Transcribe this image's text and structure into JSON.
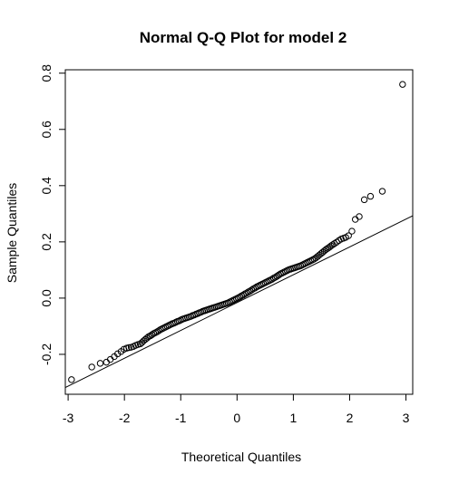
{
  "chart_data": {
    "type": "scatter",
    "title": "Normal Q-Q Plot for model 2",
    "xlabel": "Theoretical Quantiles",
    "ylabel": "Sample Quantiles",
    "xlim": [
      -3.05,
      3.12
    ],
    "ylim": [
      -0.342,
      0.812
    ],
    "xticks": [
      -3,
      -2,
      -1,
      0,
      1,
      2,
      3
    ],
    "xtick_labels": [
      "-3",
      "-2",
      "-1",
      "0",
      "1",
      "2",
      "3"
    ],
    "yticks": [
      -0.2,
      0.0,
      0.2,
      0.4,
      0.6,
      0.8
    ],
    "ytick_labels": [
      "-0.2",
      "0.0",
      "0.2",
      "0.4",
      "0.6",
      "0.8"
    ],
    "grid": false,
    "reference_line": {
      "slope": 0.099,
      "intercept": -0.016
    },
    "points_x": [
      -2.94,
      -2.58,
      -2.43,
      -2.32,
      -2.25,
      -2.18,
      -2.12,
      -2.06,
      -2.01,
      -1.96,
      -1.92,
      -1.88,
      -1.84,
      -1.8,
      -1.76,
      -1.72,
      -1.69,
      -1.66,
      -1.63,
      -1.6,
      -1.57,
      -1.54,
      -1.51,
      -1.48,
      -1.45,
      -1.42,
      -1.39,
      -1.36,
      -1.33,
      -1.3,
      -1.27,
      -1.24,
      -1.21,
      -1.18,
      -1.15,
      -1.12,
      -1.09,
      -1.06,
      -1.03,
      -1.0,
      -0.97,
      -0.94,
      -0.91,
      -0.88,
      -0.85,
      -0.82,
      -0.79,
      -0.76,
      -0.73,
      -0.7,
      -0.67,
      -0.64,
      -0.61,
      -0.58,
      -0.55,
      -0.52,
      -0.49,
      -0.46,
      -0.43,
      -0.4,
      -0.37,
      -0.34,
      -0.31,
      -0.28,
      -0.25,
      -0.22,
      -0.19,
      -0.16,
      -0.13,
      -0.1,
      -0.07,
      -0.04,
      -0.01,
      0.02,
      0.05,
      0.08,
      0.11,
      0.14,
      0.17,
      0.2,
      0.23,
      0.26,
      0.29,
      0.32,
      0.35,
      0.38,
      0.41,
      0.44,
      0.47,
      0.5,
      0.53,
      0.56,
      0.59,
      0.62,
      0.65,
      0.68,
      0.71,
      0.74,
      0.77,
      0.8,
      0.83,
      0.86,
      0.89,
      0.92,
      0.95,
      0.98,
      1.01,
      1.04,
      1.07,
      1.1,
      1.13,
      1.16,
      1.19,
      1.22,
      1.25,
      1.28,
      1.31,
      1.34,
      1.37,
      1.4,
      1.43,
      1.46,
      1.49,
      1.52,
      1.55,
      1.58,
      1.61,
      1.64,
      1.67,
      1.7,
      1.73,
      1.77,
      1.81,
      1.85,
      1.89,
      1.93,
      1.98,
      2.04,
      2.1,
      2.17,
      2.26,
      2.37,
      2.58,
      2.94
    ],
    "points_y": [
      -0.29,
      -0.245,
      -0.232,
      -0.228,
      -0.218,
      -0.208,
      -0.198,
      -0.19,
      -0.182,
      -0.178,
      -0.176,
      -0.175,
      -0.172,
      -0.168,
      -0.165,
      -0.163,
      -0.158,
      -0.152,
      -0.147,
      -0.142,
      -0.137,
      -0.134,
      -0.13,
      -0.126,
      -0.123,
      -0.12,
      -0.116,
      -0.112,
      -0.109,
      -0.106,
      -0.103,
      -0.1,
      -0.097,
      -0.094,
      -0.091,
      -0.089,
      -0.086,
      -0.083,
      -0.081,
      -0.078,
      -0.075,
      -0.073,
      -0.071,
      -0.069,
      -0.067,
      -0.065,
      -0.062,
      -0.06,
      -0.057,
      -0.055,
      -0.052,
      -0.05,
      -0.047,
      -0.045,
      -0.043,
      -0.041,
      -0.039,
      -0.037,
      -0.035,
      -0.033,
      -0.031,
      -0.029,
      -0.027,
      -0.025,
      -0.023,
      -0.021,
      -0.019,
      -0.017,
      -0.014,
      -0.011,
      -0.008,
      -0.005,
      -0.002,
      0.001,
      0.004,
      0.008,
      0.011,
      0.015,
      0.018,
      0.022,
      0.025,
      0.029,
      0.033,
      0.036,
      0.04,
      0.043,
      0.046,
      0.049,
      0.052,
      0.055,
      0.058,
      0.061,
      0.064,
      0.067,
      0.071,
      0.074,
      0.078,
      0.082,
      0.086,
      0.089,
      0.092,
      0.095,
      0.098,
      0.101,
      0.103,
      0.105,
      0.107,
      0.109,
      0.111,
      0.113,
      0.115,
      0.118,
      0.121,
      0.124,
      0.127,
      0.13,
      0.133,
      0.136,
      0.139,
      0.143,
      0.148,
      0.153,
      0.158,
      0.163,
      0.168,
      0.173,
      0.177,
      0.181,
      0.186,
      0.19,
      0.194,
      0.199,
      0.205,
      0.21,
      0.213,
      0.216,
      0.222,
      0.238,
      0.28,
      0.29,
      0.35,
      0.362,
      0.38,
      0.76
    ]
  }
}
